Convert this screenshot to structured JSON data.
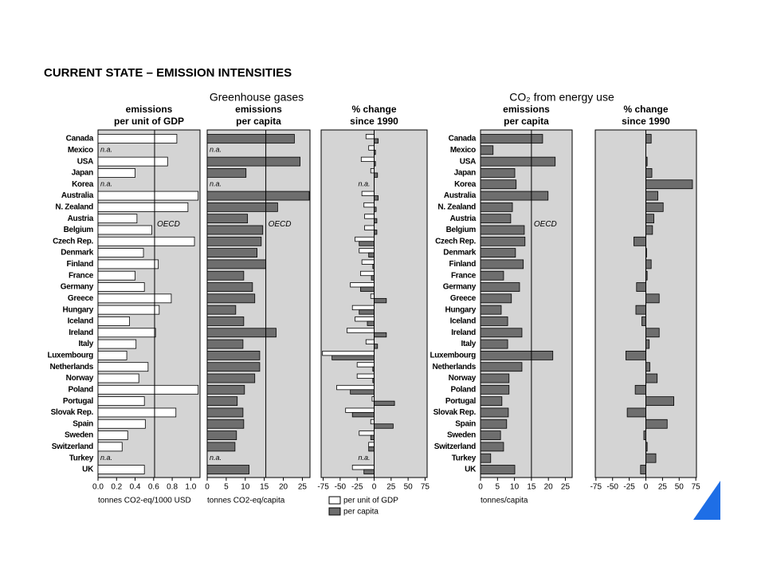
{
  "title": "CURRENT STATE – EMISSION INTENSITIES",
  "groups": [
    "Greenhouse gases",
    "CO₂ from energy use"
  ],
  "chart_data": [
    {
      "type": "bar",
      "title": [
        "emissions",
        "per unit of GDP"
      ],
      "categories": [
        "Canada",
        "Mexico",
        "USA",
        "Japan",
        "Korea",
        "Australia",
        "N. Zealand",
        "Austria",
        "Belgium",
        "Czech Rep.",
        "Denmark",
        "Finland",
        "France",
        "Germany",
        "Greece",
        "Hungary",
        "Iceland",
        "Ireland",
        "Italy",
        "Luxembourg",
        "Netherlands",
        "Norway",
        "Poland",
        "Portugal",
        "Slovak Rep.",
        "Spain",
        "Sweden",
        "Switzerland",
        "Turkey",
        "UK"
      ],
      "values": [
        0.85,
        null,
        0.75,
        0.4,
        null,
        1.08,
        0.97,
        0.42,
        0.58,
        1.04,
        0.49,
        0.65,
        0.4,
        0.5,
        0.79,
        0.66,
        0.34,
        0.62,
        0.41,
        0.31,
        0.54,
        0.44,
        1.08,
        0.5,
        0.84,
        0.51,
        0.32,
        0.26,
        null,
        0.5
      ],
      "value_labels": [
        null,
        "n.a.",
        null,
        null,
        "n.a.",
        null,
        null,
        null,
        null,
        null,
        null,
        null,
        null,
        null,
        null,
        null,
        null,
        null,
        null,
        null,
        null,
        null,
        null,
        null,
        null,
        null,
        null,
        null,
        "n.a.",
        null
      ],
      "color": "#ffffff",
      "reference": {
        "label": "OECD",
        "value": 0.61
      },
      "xlim": [
        0,
        1.1
      ],
      "xticks": [
        {
          "value": 0,
          "label": "0.0"
        },
        0.2,
        0.4,
        0.6,
        0.8,
        {
          "value": 1,
          "label": "1.0"
        }
      ],
      "xlabel": "tonnes CO2-eq/1000 USD"
    },
    {
      "type": "bar",
      "title": [
        "emissions",
        "per capita"
      ],
      "values": [
        22.9,
        null,
        24.4,
        10.2,
        null,
        26.8,
        18.5,
        10.6,
        14.6,
        14.2,
        13.1,
        15.4,
        9.6,
        11.9,
        12.5,
        7.5,
        9.6,
        18.1,
        9.4,
        13.8,
        13.8,
        12.5,
        9.8,
        7.9,
        9.4,
        9.6,
        7.7,
        7.3,
        null,
        11.0
      ],
      "value_labels": [
        null,
        "n.a.",
        null,
        null,
        "n.a.",
        null,
        null,
        null,
        null,
        null,
        null,
        null,
        null,
        null,
        null,
        null,
        null,
        null,
        null,
        null,
        null,
        null,
        null,
        null,
        null,
        null,
        null,
        null,
        "n.a.",
        null
      ],
      "color": "#6e6e6e",
      "reference": {
        "label": "OECD",
        "value": 15.4
      },
      "xlim": [
        0,
        27
      ],
      "xticks": [
        0,
        5,
        10,
        15,
        20,
        25
      ],
      "xlabel": "tonnes CO2-eq/capita"
    },
    {
      "type": "bar",
      "title": [
        "% change",
        "since 1990"
      ],
      "series": [
        {
          "name": "per unit of GDP",
          "color": "#ffffff",
          "values": [
            -12,
            -8,
            -19,
            -5,
            null,
            -18,
            -15,
            -14,
            -14,
            -28,
            -22,
            -18,
            -20,
            -35,
            -5,
            -32,
            -28,
            -40,
            -12,
            -76,
            -25,
            -25,
            -55,
            -3,
            -42,
            -5,
            -22,
            -8,
            null,
            -32
          ]
        },
        {
          "name": "per capita",
          "color": "#6e6e6e",
          "values": [
            6,
            2,
            2,
            5,
            null,
            6,
            3,
            4,
            4,
            -22,
            -8,
            -2,
            -4,
            -20,
            18,
            -22,
            -10,
            18,
            5,
            -62,
            -2,
            -2,
            -35,
            30,
            -32,
            28,
            -5,
            -8,
            null,
            -15
          ]
        }
      ],
      "value_labels": [
        null,
        null,
        null,
        null,
        "n.a.",
        null,
        null,
        null,
        null,
        null,
        null,
        null,
        null,
        null,
        null,
        null,
        null,
        null,
        null,
        null,
        null,
        null,
        null,
        null,
        null,
        null,
        null,
        null,
        "n.a.",
        null
      ],
      "xlim": [
        -78,
        78
      ],
      "xticks": [
        -75,
        -50,
        -25,
        0,
        25,
        50,
        75
      ]
    },
    {
      "type": "bar",
      "title": [
        "emissions",
        "per capita"
      ],
      "categories": [
        "Canada",
        "Mexico",
        "USA",
        "Japan",
        "Korea",
        "Australia",
        "N. Zealand",
        "Austria",
        "Belgium",
        "Czech Rep.",
        "Denmark",
        "Finland",
        "France",
        "Germany",
        "Greece",
        "Hungary",
        "Iceland",
        "Ireland",
        "Italy",
        "Luxembourg",
        "Netherlands",
        "Norway",
        "Poland",
        "Portugal",
        "Slovak Rep.",
        "Spain",
        "Sweden",
        "Switzerland",
        "Turkey",
        "UK"
      ],
      "values": [
        18.3,
        3.7,
        22.0,
        10.1,
        10.5,
        19.9,
        9.4,
        8.9,
        12.9,
        13.1,
        10.3,
        12.6,
        6.8,
        11.5,
        9.1,
        6.1,
        8.0,
        12.2,
        8.0,
        21.3,
        12.2,
        8.4,
        8.4,
        6.3,
        8.2,
        7.7,
        5.9,
        6.8,
        3.0,
        10.1
      ],
      "color": "#6e6e6e",
      "reference": {
        "label": "OECD",
        "value": 15
      },
      "xlim": [
        0,
        27
      ],
      "xticks": [
        0,
        5,
        10,
        15,
        20,
        25
      ],
      "xlabel": "tonnes/capita"
    },
    {
      "type": "bar",
      "title": [
        "% change",
        "since 1990"
      ],
      "values": [
        8,
        0,
        2,
        9,
        70,
        18,
        26,
        12,
        10,
        -18,
        1,
        8,
        2,
        -14,
        20,
        -15,
        -6,
        20,
        5,
        -30,
        6,
        17,
        -16,
        42,
        -28,
        32,
        -3,
        2,
        15,
        -8
      ],
      "color": "#6e6e6e",
      "xlim": [
        -76,
        76
      ],
      "xticks": [
        -75,
        -50,
        -25,
        0,
        25,
        50,
        75
      ]
    }
  ]
}
